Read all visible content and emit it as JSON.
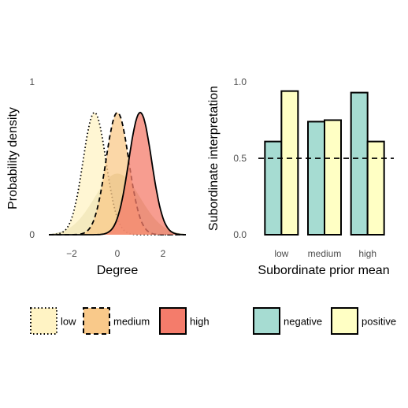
{
  "chart_data": [
    {
      "type": "area",
      "xlabel": "Degree",
      "ylabel": "Probability density",
      "xlim": [
        -3,
        3
      ],
      "ylim": [
        0,
        1
      ],
      "x_ticks": [
        "-2",
        "0",
        "2"
      ],
      "y_ticks": [
        "0",
        "1"
      ],
      "grid": false,
      "broad_prior": {
        "mean": 0,
        "sd": 1.0,
        "fill": "#b8b07a"
      },
      "series": [
        {
          "name": "low",
          "mean": -1,
          "sd": 0.5,
          "peak": 0.8,
          "fill": "#fff3c4",
          "line": "dotted"
        },
        {
          "name": "medium",
          "mean": 0,
          "sd": 0.5,
          "peak": 0.8,
          "fill": "#f9c98a",
          "line": "dashed"
        },
        {
          "name": "high",
          "mean": 1,
          "sd": 0.5,
          "peak": 0.8,
          "fill": "#f47c6b",
          "line": "solid"
        }
      ],
      "legend": {
        "placement": "bottom",
        "items": [
          "low",
          "medium",
          "high"
        ]
      }
    },
    {
      "type": "bar",
      "xlabel": "Subordinate prior mean",
      "ylabel": "Subordinate interpretation",
      "categories": [
        "low",
        "medium",
        "high"
      ],
      "ylim": [
        0,
        1
      ],
      "y_ticks": [
        "0.0",
        "0.5",
        "1.0"
      ],
      "reference_line": {
        "y": 0.5,
        "style": "dashed"
      },
      "grid": false,
      "series": [
        {
          "name": "negative",
          "values": [
            0.61,
            0.74,
            0.93
          ],
          "color": "#a6dcd2"
        },
        {
          "name": "positive",
          "values": [
            0.94,
            0.75,
            0.61
          ],
          "color": "#ffffc4"
        }
      ],
      "legend": {
        "placement": "bottom",
        "items": [
          "negative",
          "positive"
        ]
      }
    }
  ]
}
